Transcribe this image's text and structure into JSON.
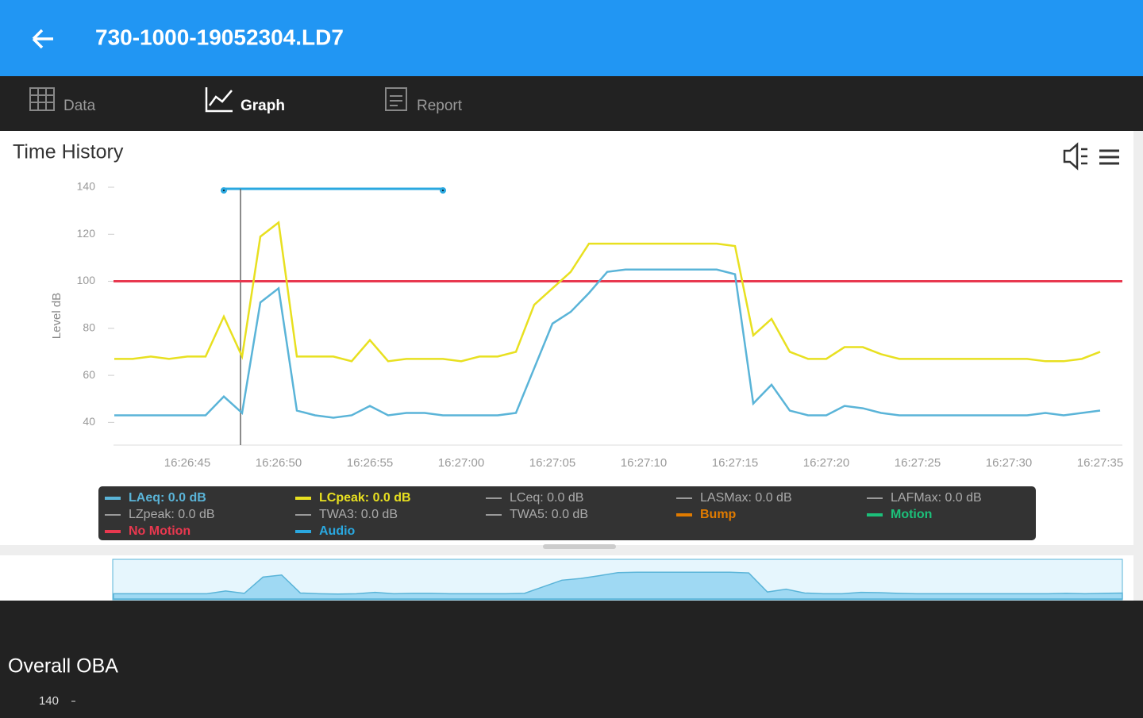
{
  "header": {
    "title": "730-1000-19052304.LD7"
  },
  "tabs": [
    "Data",
    "Graph",
    "Report"
  ],
  "chart_data": {
    "type": "line",
    "title": "Time History",
    "y_label": "Level dB",
    "categories": [
      null,
      null,
      null,
      null,
      "16:26:45",
      null,
      null,
      null,
      null,
      "16:26:50",
      null,
      null,
      null,
      null,
      "16:26:55",
      null,
      null,
      null,
      null,
      "16:27:00",
      null,
      null,
      null,
      null,
      "16:27:05",
      null,
      null,
      null,
      null,
      "16:27:10",
      null,
      null,
      null,
      null,
      "16:27:15",
      null,
      null,
      null,
      null,
      "16:27:20",
      null,
      null,
      null,
      null,
      "16:27:25",
      null,
      null,
      null,
      null,
      "16:27:30",
      null,
      null,
      null,
      null,
      "16:27:35"
    ],
    "series": [
      {
        "name": "LAeq: 0.0 dB",
        "color": "#5ab4d8",
        "values": [
          43,
          43,
          43,
          43,
          43,
          43,
          51,
          44,
          91,
          97,
          45,
          43,
          42,
          43,
          47,
          43,
          44,
          44,
          43,
          43,
          43,
          43,
          44,
          63,
          82,
          87,
          95,
          104,
          105,
          105,
          105,
          105,
          105,
          105,
          103,
          48,
          56,
          45,
          43,
          43,
          47,
          46,
          44,
          43,
          43,
          43,
          43,
          43,
          43,
          43,
          43,
          44,
          43,
          44,
          45
        ]
      },
      {
        "name": "LCpeak: 0.0 dB",
        "color": "#e8e020",
        "values": [
          67,
          67,
          68,
          67,
          68,
          68,
          85,
          68,
          119,
          125,
          68,
          68,
          68,
          66,
          75,
          66,
          67,
          67,
          67,
          66,
          68,
          68,
          70,
          90,
          97,
          104,
          116,
          116,
          116,
          116,
          116,
          116,
          116,
          116,
          115,
          77,
          84,
          70,
          67,
          67,
          72,
          72,
          69,
          67,
          67,
          67,
          67,
          67,
          67,
          67,
          67,
          66,
          66,
          67,
          70
        ]
      }
    ],
    "threshold": 100,
    "threshold_color": "#e8384f",
    "legend_extra": [
      {
        "name": "LCeq: 0.0 dB",
        "color": "#9a9a9a"
      },
      {
        "name": "LASMax: 0.0 dB",
        "color": "#9a9a9a"
      },
      {
        "name": "LAFMax: 0.0 dB",
        "color": "#9a9a9a"
      },
      {
        "name": "LZpeak: 0.0 dB",
        "color": "#9a9a9a"
      },
      {
        "name": "TWA3: 0.0 dB",
        "color": "#9a9a9a"
      },
      {
        "name": "TWA5: 0.0 dB",
        "color": "#9a9a9a"
      },
      {
        "name": "Bump",
        "color": "#e07b00"
      },
      {
        "name": "Motion",
        "color": "#1cc07a"
      },
      {
        "name": "No Motion",
        "color": "#e8384f"
      },
      {
        "name": "Audio",
        "color": "#2aa8e0"
      }
    ],
    "ylim": [
      30,
      140
    ],
    "yticks": [
      40,
      60,
      80,
      100,
      120,
      140
    ]
  },
  "overall_oba": {
    "title": "Overall OBA",
    "top_tick": "140"
  }
}
